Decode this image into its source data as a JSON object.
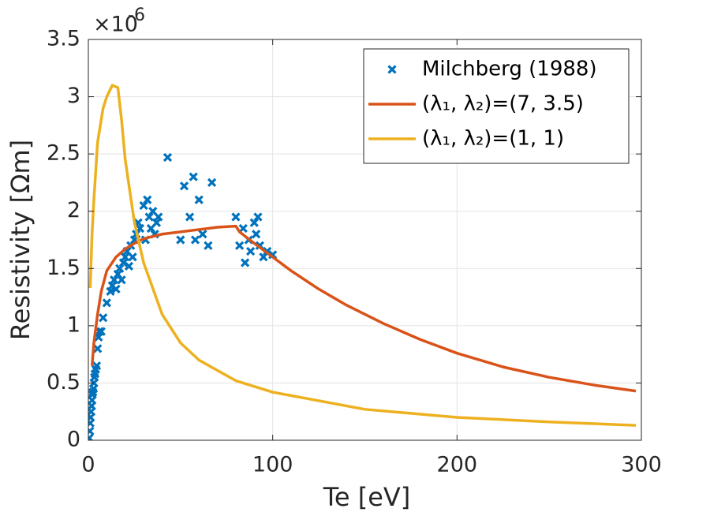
{
  "chart_data": {
    "type": "line",
    "x_label": "Te [eV]",
    "y_label": "Resistivity [Ωm]",
    "y_multiplier": {
      "base": "×10",
      "exponent": "-6"
    },
    "xlim": [
      0,
      300
    ],
    "ylim": [
      0,
      3.5
    ],
    "xticks": [
      0,
      100,
      200,
      300
    ],
    "yticks": [
      0,
      0.5,
      1,
      1.5,
      2,
      2.5,
      3,
      3.5
    ],
    "grid": true,
    "legend": "upper right",
    "series": [
      {
        "name": "Milchberg (1988)",
        "type": "scatter",
        "color": "#0072bd",
        "x": [
          0.5,
          0.8,
          1,
          1.2,
          1.5,
          1.8,
          2,
          2.2,
          2.5,
          2.8,
          3,
          3.3,
          3.6,
          4,
          4.5,
          5,
          5.5,
          6,
          7,
          8,
          10,
          12,
          13,
          14,
          15,
          16,
          17,
          18,
          19,
          20,
          21,
          22,
          23,
          24,
          25,
          26,
          27,
          28,
          30,
          31,
          32,
          33,
          34,
          35,
          36,
          37,
          38,
          43,
          50,
          52,
          55,
          57,
          58,
          60,
          62,
          65,
          67,
          80,
          82,
          84,
          85,
          87,
          88,
          90,
          91,
          92,
          93,
          95,
          97,
          100
        ],
        "values": [
          0.02,
          0.08,
          0.15,
          0.2,
          0.25,
          0.3,
          0.35,
          0.4,
          0.42,
          0.45,
          0.5,
          0.55,
          0.58,
          0.62,
          0.65,
          0.8,
          0.9,
          0.95,
          0.95,
          1.07,
          1.2,
          1.3,
          1.35,
          1.4,
          1.32,
          1.45,
          1.5,
          1.4,
          1.55,
          1.6,
          1.65,
          1.52,
          1.7,
          1.6,
          1.75,
          1.8,
          1.9,
          1.85,
          2.05,
          1.75,
          2.1,
          1.95,
          1.85,
          2.0,
          1.8,
          1.9,
          1.95,
          2.47,
          1.75,
          2.22,
          1.95,
          2.3,
          1.75,
          2.1,
          1.8,
          1.7,
          2.25,
          1.95,
          1.7,
          1.85,
          1.55,
          1.75,
          1.65,
          1.9,
          1.8,
          1.95,
          1.7,
          1.6,
          1.65,
          1.62
        ]
      },
      {
        "name": "(λ₁, λ₂)=(7, 3.5)",
        "type": "line",
        "color": "#d95319",
        "x": [
          2,
          3,
          5,
          7,
          10,
          15,
          20,
          25,
          30,
          40,
          50,
          60,
          70,
          80,
          82,
          90,
          100,
          110,
          125,
          140,
          160,
          180,
          200,
          225,
          250,
          275,
          297
        ],
        "values": [
          0.65,
          0.85,
          1.1,
          1.3,
          1.48,
          1.6,
          1.67,
          1.72,
          1.76,
          1.8,
          1.82,
          1.84,
          1.86,
          1.87,
          1.82,
          1.72,
          1.6,
          1.48,
          1.32,
          1.18,
          1.02,
          0.88,
          0.76,
          0.64,
          0.55,
          0.48,
          0.43
        ]
      },
      {
        "name": "(λ₁, λ₂)=(1, 1)",
        "type": "line",
        "color": "#edb120",
        "x": [
          1,
          2,
          3,
          5,
          8,
          10,
          13,
          16,
          18,
          20,
          25,
          30,
          40,
          50,
          60,
          80,
          100,
          150,
          200,
          250,
          297
        ],
        "values": [
          1.33,
          1.8,
          2.1,
          2.6,
          2.9,
          3.0,
          3.1,
          3.08,
          2.8,
          2.45,
          1.9,
          1.55,
          1.1,
          0.85,
          0.7,
          0.52,
          0.42,
          0.27,
          0.2,
          0.16,
          0.13
        ]
      }
    ]
  }
}
